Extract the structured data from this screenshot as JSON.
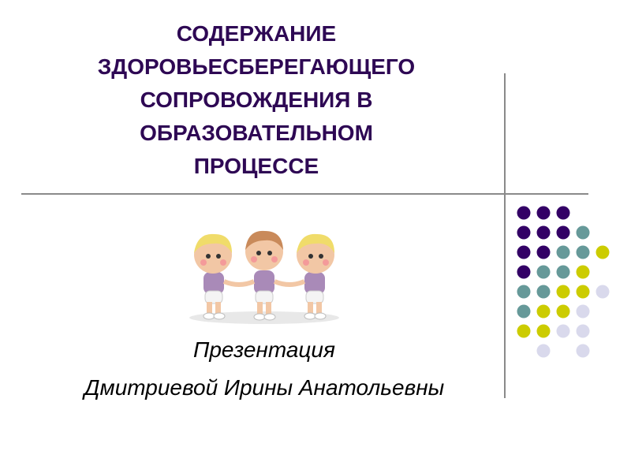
{
  "slide": {
    "title_lines": [
      "СОДЕРЖАНИЕ",
      "ЗДОРОВЬЕСБЕРЕГАЮЩЕГО",
      "СОПРОВОЖДЕНИЯ В",
      "ОБРАЗОВАТЕЛЬНОМ",
      "ПРОЦЕССЕ"
    ],
    "subtitle_lines": [
      "Презентация",
      "Дмитриевой Ирины Анатольевны"
    ],
    "illustration": "three-cartoon-children-holding-hands",
    "colors": {
      "title": "#2e0854",
      "dot_purple": "#330066",
      "dot_teal": "#669999",
      "dot_yellow": "#cccc00",
      "dot_lavender": "#d9d9ec",
      "lines": "#8a8a8a"
    },
    "dot_grid": [
      "PPP..",
      "PPPT.",
      "PPTTY",
      "PTTY.",
      "TTYYL",
      "TYYL.",
      "YYLL.",
      ".L.L."
    ]
  }
}
